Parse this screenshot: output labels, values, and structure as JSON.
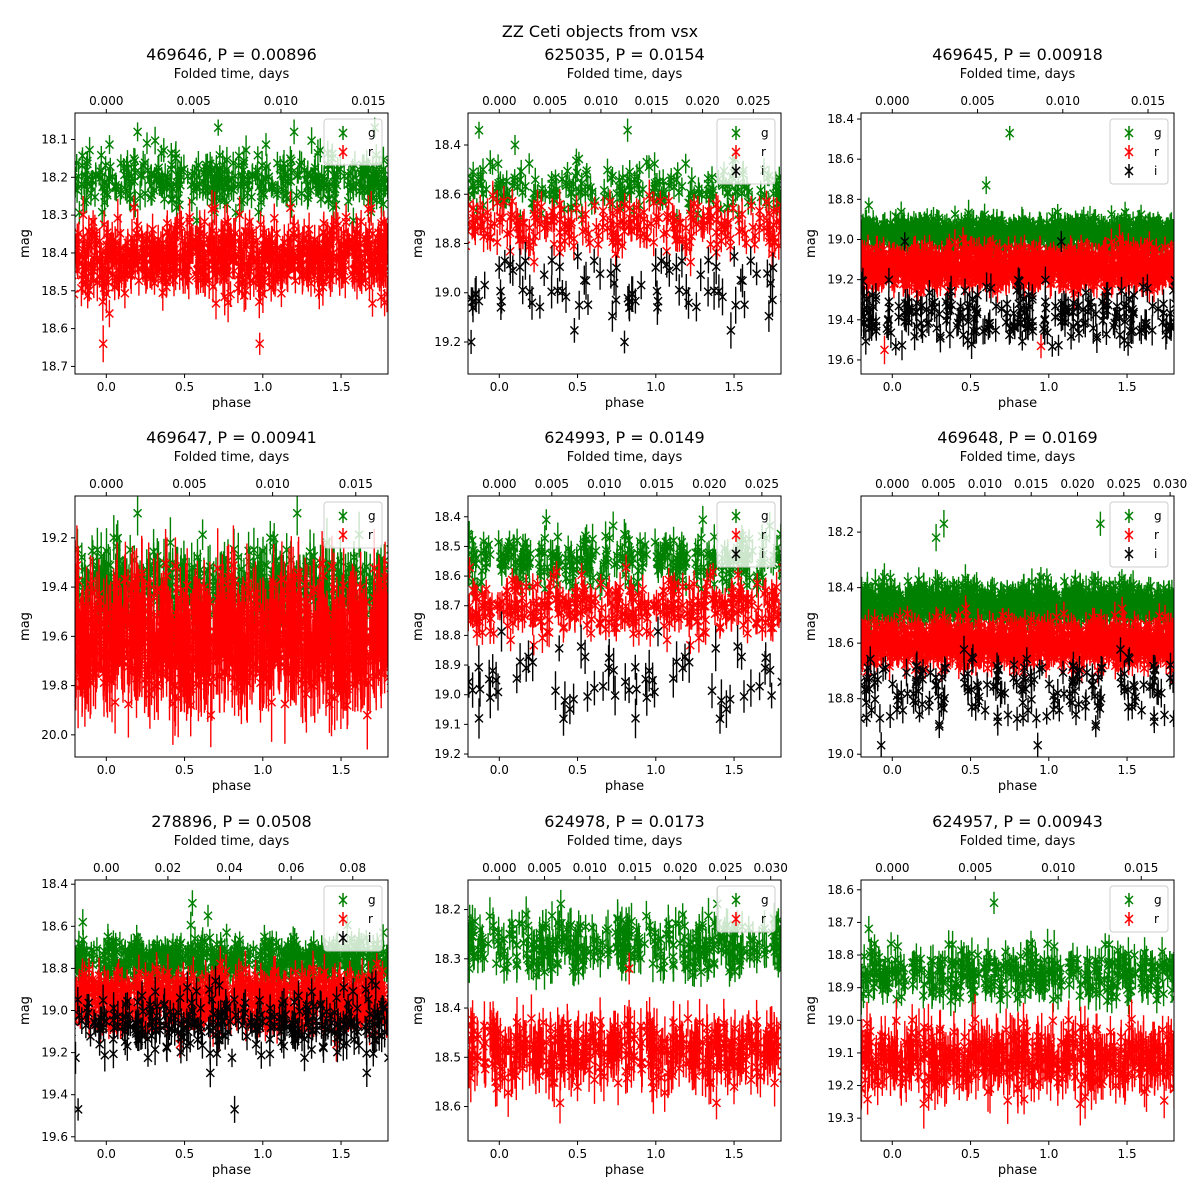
{
  "figure": {
    "title": "ZZ Ceti objects from vsx"
  },
  "colors": {
    "g": "#008000",
    "r": "#ff0000",
    "i": "#000000"
  },
  "chart_data": [
    {
      "type": "scatter",
      "title": "469646, P = 0.00896",
      "xlabel": "phase",
      "ylabel": "mag",
      "top_xlabel": "Folded time, days",
      "xlim": [
        -0.2,
        1.8
      ],
      "ylim": [
        18.72,
        18.03
      ],
      "y_inverted": true,
      "xticks": [
        0.0,
        0.5,
        1.0,
        1.5
      ],
      "xtick_labels": [
        "0.0",
        "0.5",
        "1.0",
        "1.5"
      ],
      "yticks": [
        18.1,
        18.2,
        18.3,
        18.4,
        18.5,
        18.6,
        18.7
      ],
      "ytick_labels": [
        "18.1",
        "18.2",
        "18.3",
        "18.4",
        "18.5",
        "18.6",
        "18.7"
      ],
      "top_xticks": [
        0.0,
        0.005,
        0.01,
        0.015
      ],
      "top_xtick_labels": [
        "0.000",
        "0.005",
        "0.010",
        "0.015"
      ],
      "period_days": 0.00896,
      "legend": [
        "g",
        "r"
      ],
      "legend_loc": "upper right",
      "series": [
        {
          "name": "g",
          "mean": 18.21,
          "scatter": 0.035,
          "err": 0.03,
          "n": 190,
          "outliers": [
            [
              0.2,
              18.08
            ],
            [
              1.2,
              18.08
            ],
            [
              0.26,
              18.11
            ]
          ]
        },
        {
          "name": "r",
          "mean": 18.41,
          "scatter": 0.045,
          "err": 0.04,
          "n": 380,
          "outliers": [
            [
              -0.02,
              18.64
            ],
            [
              0.98,
              18.64
            ],
            [
              0.02,
              18.56
            ]
          ]
        }
      ]
    },
    {
      "type": "scatter",
      "title": "625035, P = 0.0154",
      "xlabel": "phase",
      "ylabel": "mag",
      "top_xlabel": "Folded time, days",
      "xlim": [
        -0.2,
        1.8
      ],
      "ylim": [
        19.33,
        18.27
      ],
      "y_inverted": true,
      "xticks": [
        0.0,
        0.5,
        1.0,
        1.5
      ],
      "xtick_labels": [
        "0.0",
        "0.5",
        "1.0",
        "1.5"
      ],
      "yticks": [
        18.4,
        18.6,
        18.8,
        19.0,
        19.2
      ],
      "ytick_labels": [
        "18.4",
        "18.6",
        "18.8",
        "19.0",
        "19.2"
      ],
      "top_xticks": [
        0.0,
        0.005,
        0.01,
        0.015,
        0.02,
        0.025
      ],
      "top_xtick_labels": [
        "0.000",
        "0.005",
        "0.010",
        "0.015",
        "0.020",
        "0.025"
      ],
      "period_days": 0.0154,
      "legend": [
        "g",
        "r",
        "i"
      ],
      "legend_loc": "upper right",
      "series": [
        {
          "name": "g",
          "mean": 18.58,
          "scatter": 0.05,
          "err": 0.04,
          "n": 110,
          "outliers": [
            [
              -0.13,
              18.34
            ],
            [
              0.82,
              18.34
            ],
            [
              0.1,
              18.4
            ]
          ]
        },
        {
          "name": "r",
          "mean": 18.74,
          "scatter": 0.055,
          "err": 0.05,
          "n": 120,
          "outliers": []
        },
        {
          "name": "i",
          "mean": 19.0,
          "scatter": 0.08,
          "err": 0.06,
          "n": 40,
          "outliers": [
            [
              -0.18,
              19.2
            ],
            [
              0.8,
              19.2
            ]
          ]
        }
      ]
    },
    {
      "type": "scatter",
      "title": "469645, P = 0.00918",
      "xlabel": "phase",
      "ylabel": "mag",
      "top_xlabel": "Folded time, days",
      "xlim": [
        -0.2,
        1.8
      ],
      "ylim": [
        19.67,
        18.37
      ],
      "y_inverted": true,
      "xticks": [
        0.0,
        0.5,
        1.0,
        1.5
      ],
      "xtick_labels": [
        "0.0",
        "0.5",
        "1.0",
        "1.5"
      ],
      "yticks": [
        18.4,
        18.6,
        18.8,
        19.0,
        19.2,
        19.4,
        19.6
      ],
      "ytick_labels": [
        "18.4",
        "18.6",
        "18.8",
        "19.0",
        "19.2",
        "19.4",
        "19.6"
      ],
      "top_xticks": [
        0.0,
        0.005,
        0.01,
        0.015
      ],
      "top_xtick_labels": [
        "0.000",
        "0.005",
        "0.010",
        "0.015"
      ],
      "period_days": 0.00918,
      "legend": [
        "g",
        "r",
        "i"
      ],
      "legend_loc": "upper right",
      "series": [
        {
          "name": "g",
          "mean": 18.97,
          "scatter": 0.04,
          "err": 0.05,
          "n": 520,
          "outliers": [
            [
              0.75,
              18.47
            ],
            [
              -0.15,
              18.83
            ],
            [
              0.6,
              18.73
            ]
          ]
        },
        {
          "name": "r",
          "mean": 19.14,
          "scatter": 0.045,
          "err": 0.06,
          "n": 620,
          "outliers": [
            [
              -0.05,
              19.55
            ],
            [
              0.95,
              19.53
            ]
          ]
        },
        {
          "name": "i",
          "mean": 19.38,
          "scatter": 0.07,
          "err": 0.06,
          "n": 120,
          "outliers": [
            [
              0.08,
              19.01
            ],
            [
              1.08,
              19.01
            ]
          ]
        }
      ]
    },
    {
      "type": "scatter",
      "title": "469647, P = 0.00941",
      "xlabel": "phase",
      "ylabel": "mag",
      "top_xlabel": "Folded time, days",
      "xlim": [
        -0.2,
        1.8
      ],
      "ylim": [
        20.09,
        19.03
      ],
      "y_inverted": true,
      "xticks": [
        0.0,
        0.5,
        1.0,
        1.5
      ],
      "xtick_labels": [
        "0.0",
        "0.5",
        "1.0",
        "1.5"
      ],
      "yticks": [
        19.2,
        19.4,
        19.6,
        19.8,
        20.0
      ],
      "ytick_labels": [
        "19.2",
        "19.4",
        "19.6",
        "19.8",
        "20.0"
      ],
      "top_xticks": [
        0.0,
        0.005,
        0.01,
        0.015
      ],
      "top_xtick_labels": [
        "0.000",
        "0.005",
        "0.010",
        "0.015"
      ],
      "period_days": 0.00941,
      "legend": [
        "g",
        "r"
      ],
      "legend_loc": "upper right",
      "series": [
        {
          "name": "g",
          "mean": 19.4,
          "scatter": 0.07,
          "err": 0.08,
          "n": 240,
          "outliers": [
            [
              0.2,
              19.1
            ],
            [
              1.22,
              19.1
            ]
          ]
        },
        {
          "name": "r",
          "mean": 19.62,
          "scatter": 0.1,
          "err": 0.13,
          "n": 520,
          "outliers": []
        }
      ]
    },
    {
      "type": "scatter",
      "title": "624993, P = 0.0149",
      "xlabel": "phase",
      "ylabel": "mag",
      "top_xlabel": "Folded time, days",
      "xlim": [
        -0.2,
        1.8
      ],
      "ylim": [
        19.21,
        18.33
      ],
      "y_inverted": true,
      "xticks": [
        0.0,
        0.5,
        1.0,
        1.5
      ],
      "xtick_labels": [
        "0.0",
        "0.5",
        "1.0",
        "1.5"
      ],
      "yticks": [
        18.4,
        18.5,
        18.6,
        18.7,
        18.8,
        18.9,
        19.0,
        19.1,
        19.2
      ],
      "ytick_labels": [
        "18.4",
        "18.5",
        "18.6",
        "18.7",
        "18.8",
        "18.9",
        "19.0",
        "19.1",
        "19.2"
      ],
      "top_xticks": [
        0.0,
        0.005,
        0.01,
        0.015,
        0.02,
        0.025
      ],
      "top_xtick_labels": [
        "0.000",
        "0.005",
        "0.010",
        "0.015",
        "0.020",
        "0.025"
      ],
      "period_days": 0.0149,
      "legend": [
        "g",
        "r",
        "i"
      ],
      "legend_loc": "upper right",
      "series": [
        {
          "name": "g",
          "mean": 18.55,
          "scatter": 0.045,
          "err": 0.04,
          "n": 160,
          "outliers": [
            [
              0.3,
              18.41
            ],
            [
              1.3,
              18.41
            ]
          ]
        },
        {
          "name": "r",
          "mean": 18.7,
          "scatter": 0.045,
          "err": 0.04,
          "n": 170,
          "outliers": []
        },
        {
          "name": "i",
          "mean": 18.92,
          "scatter": 0.08,
          "err": 0.06,
          "n": 30,
          "outliers": [
            [
              -0.13,
              19.08
            ],
            [
              0.87,
              19.08
            ]
          ]
        }
      ]
    },
    {
      "type": "scatter",
      "title": "469648, P = 0.0169",
      "xlabel": "phase",
      "ylabel": "mag",
      "top_xlabel": "Folded time, days",
      "xlim": [
        -0.2,
        1.8
      ],
      "ylim": [
        19.01,
        18.07
      ],
      "y_inverted": true,
      "xticks": [
        0.0,
        0.5,
        1.0,
        1.5
      ],
      "xtick_labels": [
        "0.0",
        "0.5",
        "1.0",
        "1.5"
      ],
      "yticks": [
        18.2,
        18.4,
        18.6,
        18.8,
        19.0
      ],
      "ytick_labels": [
        "18.2",
        "18.4",
        "18.6",
        "18.8",
        "19.0"
      ],
      "top_xticks": [
        0.0,
        0.005,
        0.01,
        0.015,
        0.02,
        0.025,
        0.03
      ],
      "top_xtick_labels": [
        "0.000",
        "0.005",
        "0.010",
        "0.015",
        "0.020",
        "0.025",
        "0.030"
      ],
      "period_days": 0.0169,
      "legend": [
        "g",
        "r",
        "i"
      ],
      "legend_loc": "upper right",
      "series": [
        {
          "name": "g",
          "mean": 18.46,
          "scatter": 0.035,
          "err": 0.04,
          "n": 560,
          "outliers": [
            [
              0.28,
              18.22
            ],
            [
              0.33,
              18.17
            ],
            [
              1.33,
              18.17
            ]
          ]
        },
        {
          "name": "r",
          "mean": 18.6,
          "scatter": 0.035,
          "err": 0.04,
          "n": 700,
          "outliers": []
        },
        {
          "name": "i",
          "mean": 18.76,
          "scatter": 0.06,
          "err": 0.04,
          "n": 90,
          "outliers": [
            [
              0.3,
              18.9
            ],
            [
              1.3,
              18.9
            ]
          ]
        }
      ]
    },
    {
      "type": "scatter",
      "title": "278896, P = 0.0508",
      "xlabel": "phase",
      "ylabel": "mag",
      "top_xlabel": "Folded time, days",
      "xlim": [
        -0.2,
        1.8
      ],
      "ylim": [
        19.62,
        18.38
      ],
      "y_inverted": true,
      "xticks": [
        0.0,
        0.5,
        1.0,
        1.5
      ],
      "xtick_labels": [
        "0.0",
        "0.5",
        "1.0",
        "1.5"
      ],
      "yticks": [
        18.4,
        18.6,
        18.8,
        19.0,
        19.2,
        19.4,
        19.6
      ],
      "ytick_labels": [
        "18.4",
        "18.6",
        "18.8",
        "19.0",
        "19.2",
        "19.4",
        "19.6"
      ],
      "top_xticks": [
        0.0,
        0.02,
        0.04,
        0.06,
        0.08
      ],
      "top_xtick_labels": [
        "0.00",
        "0.02",
        "0.04",
        "0.06",
        "0.08"
      ],
      "period_days": 0.0508,
      "legend": [
        "g",
        "r",
        "i"
      ],
      "legend_loc": "upper right",
      "series": [
        {
          "name": "g",
          "mean": 18.76,
          "scatter": 0.05,
          "err": 0.05,
          "n": 300,
          "outliers": [
            [
              0.55,
              18.49
            ],
            [
              -0.15,
              18.58
            ],
            [
              0.65,
              18.55
            ]
          ]
        },
        {
          "name": "r",
          "mean": 18.95,
          "scatter": 0.06,
          "err": 0.07,
          "n": 420,
          "outliers": []
        },
        {
          "name": "i",
          "mean": 19.07,
          "scatter": 0.07,
          "err": 0.06,
          "n": 150,
          "outliers": [
            [
              -0.18,
              19.47
            ],
            [
              0.82,
              19.47
            ]
          ]
        }
      ]
    },
    {
      "type": "scatter",
      "title": "624978, P = 0.0173",
      "xlabel": "phase",
      "ylabel": "mag",
      "top_xlabel": "Folded time, days",
      "xlim": [
        -0.2,
        1.8
      ],
      "ylim": [
        18.67,
        18.14
      ],
      "y_inverted": true,
      "xticks": [
        0.0,
        0.5,
        1.0,
        1.5
      ],
      "xtick_labels": [
        "0.0",
        "0.5",
        "1.0",
        "1.5"
      ],
      "yticks": [
        18.2,
        18.3,
        18.4,
        18.5,
        18.6
      ],
      "ytick_labels": [
        "18.2",
        "18.3",
        "18.4",
        "18.5",
        "18.6"
      ],
      "top_xticks": [
        0.0,
        0.005,
        0.01,
        0.015,
        0.02,
        0.025,
        0.03
      ],
      "top_xtick_labels": [
        "0.000",
        "0.005",
        "0.010",
        "0.015",
        "0.020",
        "0.025",
        "0.030"
      ],
      "period_days": 0.0173,
      "legend": [
        "g",
        "r"
      ],
      "legend_loc": "upper right",
      "series": [
        {
          "name": "g",
          "mean": 18.27,
          "scatter": 0.025,
          "err": 0.03,
          "n": 170,
          "outliers": []
        },
        {
          "name": "r",
          "mean": 18.49,
          "scatter": 0.03,
          "err": 0.04,
          "n": 220,
          "outliers": [
            [
              0.83,
              18.32
            ]
          ]
        }
      ]
    },
    {
      "type": "scatter",
      "title": "624957, P = 0.00943",
      "xlabel": "phase",
      "ylabel": "mag",
      "top_xlabel": "Folded time, days",
      "xlim": [
        -0.2,
        1.8
      ],
      "ylim": [
        19.37,
        18.57
      ],
      "y_inverted": true,
      "xticks": [
        0.0,
        0.5,
        1.0,
        1.5
      ],
      "xtick_labels": [
        "0.0",
        "0.5",
        "1.0",
        "1.5"
      ],
      "yticks": [
        18.6,
        18.7,
        18.8,
        18.9,
        19.0,
        19.1,
        19.2,
        19.3
      ],
      "ytick_labels": [
        "18.6",
        "18.7",
        "18.8",
        "18.9",
        "19.0",
        "19.1",
        "19.2",
        "19.3"
      ],
      "top_xticks": [
        0.0,
        0.005,
        0.01,
        0.015
      ],
      "top_xtick_labels": [
        "0.000",
        "0.005",
        "0.010",
        "0.015"
      ],
      "period_days": 0.00943,
      "legend": [
        "g",
        "r"
      ],
      "legend_loc": "upper right",
      "series": [
        {
          "name": "g",
          "mean": 18.86,
          "scatter": 0.04,
          "err": 0.04,
          "n": 190,
          "outliers": [
            [
              0.65,
              18.64
            ],
            [
              -0.15,
              18.72
            ]
          ]
        },
        {
          "name": "r",
          "mean": 19.12,
          "scatter": 0.05,
          "err": 0.06,
          "n": 260,
          "outliers": []
        }
      ]
    }
  ]
}
